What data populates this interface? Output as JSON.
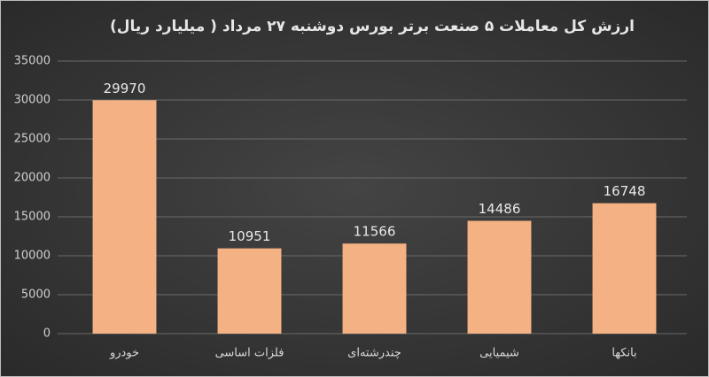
{
  "chart_data": {
    "type": "bar",
    "title": "ارزش کل معاملات ۵ صنعت برتر بورس دوشنبه ۲۷ مرداد ( میلیارد ریال)",
    "categories": [
      "خودرو",
      "فلزات اساسی",
      "چندرشته‌ای",
      "شیمیایی",
      "بانکها"
    ],
    "values": [
      29970,
      10951,
      11566,
      14486,
      16748
    ],
    "color": "#f4b183",
    "ylim": [
      0,
      35000
    ],
    "yticks": [
      0,
      5000,
      10000,
      15000,
      20000,
      25000,
      30000,
      35000
    ],
    "grid": true,
    "data_labels": true
  }
}
